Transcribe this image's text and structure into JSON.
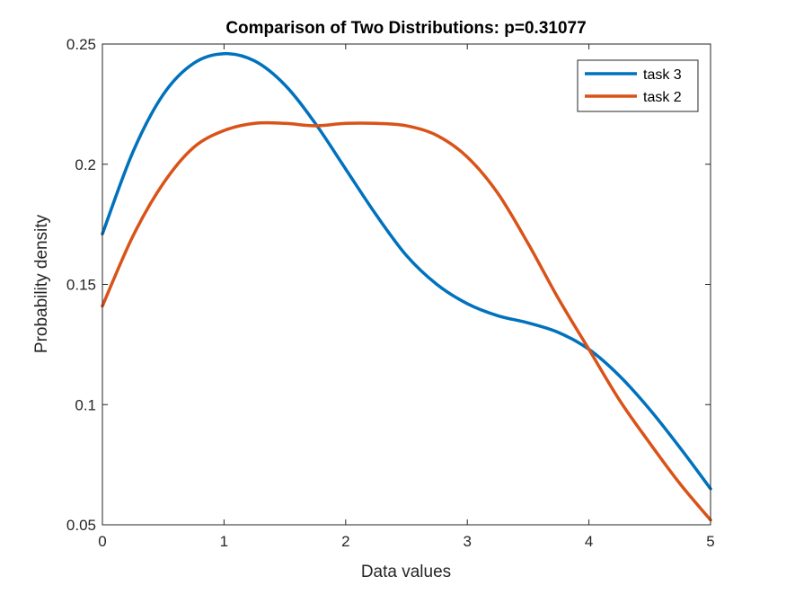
{
  "chart_data": {
    "type": "line",
    "title": "Comparison of Two Distributions: p=0.31077",
    "xlabel": "Data values",
    "ylabel": "Probability density",
    "xlim": [
      0,
      5
    ],
    "ylim": [
      0.05,
      0.25
    ],
    "xticks": [
      0,
      1,
      2,
      3,
      4,
      5
    ],
    "xtick_labels": [
      "0",
      "1",
      "2",
      "3",
      "4",
      "5"
    ],
    "yticks": [
      0.05,
      0.1,
      0.15,
      0.2,
      0.25
    ],
    "ytick_labels": [
      "0.05",
      "0.1",
      "0.15",
      "0.2",
      "0.25"
    ],
    "grid": false,
    "box": true,
    "legend": {
      "location": "top-right",
      "entries": [
        "task 3",
        "task 2"
      ]
    },
    "series": [
      {
        "name": "task 3",
        "color": "#0072BD",
        "x": [
          0,
          0.25,
          0.5,
          0.75,
          1.0,
          1.25,
          1.5,
          1.75,
          2.0,
          2.25,
          2.5,
          2.75,
          3.0,
          3.25,
          3.5,
          3.75,
          4.0,
          4.25,
          4.5,
          4.75,
          5.0
        ],
        "y": [
          0.171,
          0.205,
          0.229,
          0.242,
          0.246,
          0.243,
          0.233,
          0.217,
          0.198,
          0.179,
          0.162,
          0.15,
          0.142,
          0.137,
          0.134,
          0.13,
          0.123,
          0.112,
          0.098,
          0.082,
          0.065
        ]
      },
      {
        "name": "task 2",
        "color": "#D95319",
        "x": [
          0,
          0.25,
          0.5,
          0.75,
          1.0,
          1.25,
          1.5,
          1.75,
          2.0,
          2.25,
          2.5,
          2.75,
          3.0,
          3.25,
          3.5,
          3.75,
          4.0,
          4.25,
          4.5,
          4.75,
          5.0
        ],
        "y": [
          0.141,
          0.17,
          0.192,
          0.207,
          0.214,
          0.217,
          0.217,
          0.216,
          0.217,
          0.217,
          0.216,
          0.212,
          0.203,
          0.188,
          0.167,
          0.144,
          0.123,
          0.102,
          0.084,
          0.067,
          0.052
        ]
      }
    ]
  }
}
